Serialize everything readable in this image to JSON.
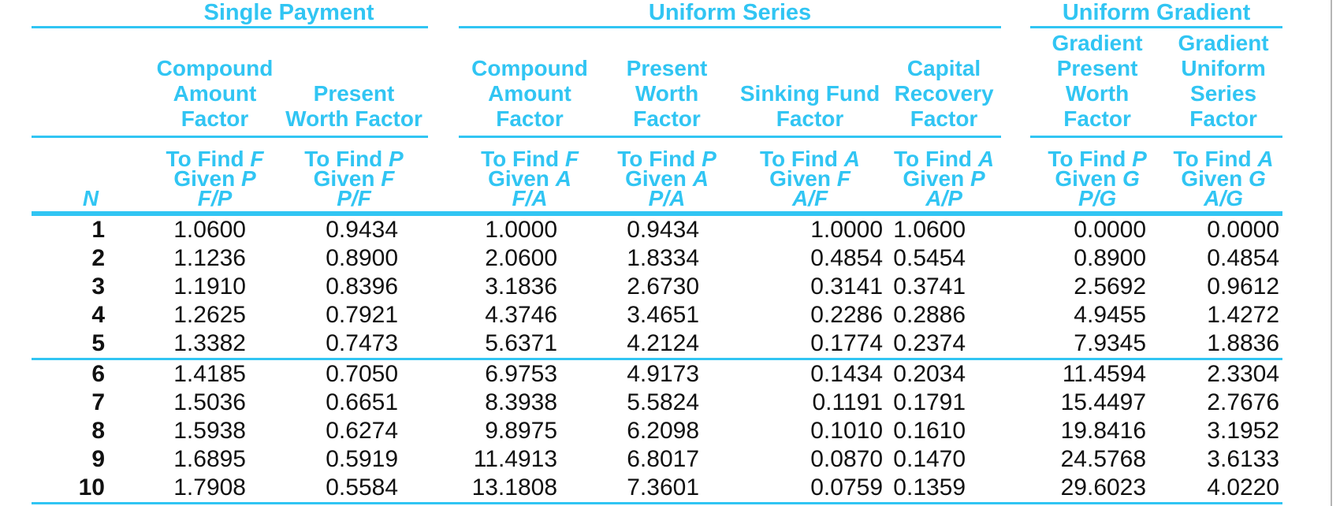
{
  "page": {
    "accent_color": "#31c5f3",
    "text_color": "#111111",
    "edge_line_color": "#b5b5b5"
  },
  "groups": [
    {
      "title": "Single Payment"
    },
    {
      "title": "Uniform Series"
    },
    {
      "title": "Uniform Gradient"
    }
  ],
  "columns": [
    {
      "label": "N"
    },
    {
      "name": "Compound\nAmount\nFactor",
      "find": "To Find ",
      "find_var": "F",
      "given": "Given ",
      "given_var": "P",
      "ratio": "F/P"
    },
    {
      "name": "Present\nWorth Factor",
      "find": "To Find ",
      "find_var": "P",
      "given": "Given ",
      "given_var": "F",
      "ratio": "P/F"
    },
    {
      "name": "Compound\nAmount\nFactor",
      "find": "To Find ",
      "find_var": "F",
      "given": "Given ",
      "given_var": "A",
      "ratio": "F/A"
    },
    {
      "name": "Present\nWorth Factor",
      "find": "To Find ",
      "find_var": "P",
      "given": "Given ",
      "given_var": "A",
      "ratio": "P/A"
    },
    {
      "name": "Sinking Fund\nFactor",
      "find": "To Find ",
      "find_var": "A",
      "given": "Given ",
      "given_var": "F",
      "ratio": "A/F"
    },
    {
      "name": "Capital\nRecovery\nFactor",
      "find": "To Find ",
      "find_var": "A",
      "given": "Given ",
      "given_var": "P",
      "ratio": "A/P"
    },
    {
      "name": "Gradient\nPresent\nWorth\nFactor",
      "find": "To Find ",
      "find_var": "P",
      "given": "Given ",
      "given_var": "G",
      "ratio": "P/G"
    },
    {
      "name": "Gradient\nUniform\nSeries\nFactor",
      "find": "To Find ",
      "find_var": "A",
      "given": "Given ",
      "given_var": "G",
      "ratio": "A/G"
    }
  ],
  "table": {
    "rows": [
      [
        "1",
        "1.0600",
        "0.9434",
        "1.0000",
        "0.9434",
        "1.0000",
        "1.0600",
        "0.0000",
        "0.0000"
      ],
      [
        "2",
        "1.1236",
        "0.8900",
        "2.0600",
        "1.8334",
        "0.4854",
        "0.5454",
        "0.8900",
        "0.4854"
      ],
      [
        "3",
        "1.1910",
        "0.8396",
        "3.1836",
        "2.6730",
        "0.3141",
        "0.3741",
        "2.5692",
        "0.9612"
      ],
      [
        "4",
        "1.2625",
        "0.7921",
        "4.3746",
        "3.4651",
        "0.2286",
        "0.2886",
        "4.9455",
        "1.4272"
      ],
      [
        "5",
        "1.3382",
        "0.7473",
        "5.6371",
        "4.2124",
        "0.1774",
        "0.2374",
        "7.9345",
        "1.8836"
      ],
      [
        "6",
        "1.4185",
        "0.7050",
        "6.9753",
        "4.9173",
        "0.1434",
        "0.2034",
        "11.4594",
        "2.3304"
      ],
      [
        "7",
        "1.5036",
        "0.6651",
        "8.3938",
        "5.5824",
        "0.1191",
        "0.1791",
        "15.4497",
        "2.7676"
      ],
      [
        "8",
        "1.5938",
        "0.6274",
        "9.8975",
        "6.2098",
        "0.1010",
        "0.1610",
        "19.8416",
        "3.1952"
      ],
      [
        "9",
        "1.6895",
        "0.5919",
        "11.4913",
        "6.8017",
        "0.0870",
        "0.1470",
        "24.5768",
        "3.6133"
      ],
      [
        "10",
        "1.7908",
        "0.5584",
        "13.1808",
        "7.3601",
        "0.0759",
        "0.1359",
        "29.6023",
        "4.0220"
      ]
    ]
  }
}
